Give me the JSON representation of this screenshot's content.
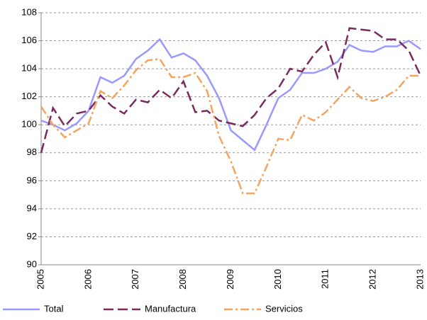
{
  "chart_data": {
    "type": "line",
    "categories": [
      "2005",
      null,
      null,
      null,
      "2006",
      null,
      null,
      null,
      "2007",
      null,
      null,
      null,
      "2008",
      null,
      null,
      null,
      "2009",
      null,
      null,
      null,
      "2010",
      null,
      null,
      null,
      "2011",
      null,
      null,
      null,
      "2012",
      null,
      null,
      null,
      "2013"
    ],
    "series": [
      {
        "name": "Total",
        "color": "#9999ff",
        "dash": "solid",
        "values": [
          100.3,
          100.0,
          99.6,
          100.1,
          101.0,
          103.4,
          103.0,
          103.5,
          104.7,
          105.3,
          106.1,
          104.8,
          105.1,
          104.6,
          103.5,
          101.9,
          99.6,
          98.9,
          98.2,
          100.0,
          101.9,
          102.5,
          103.7,
          103.7,
          104.0,
          104.5,
          105.7,
          105.3,
          105.2,
          105.6,
          105.6,
          106.0,
          105.4
        ]
      },
      {
        "name": "Manufactura",
        "color": "#7b2a5e",
        "dash": "long-dash",
        "values": [
          98.0,
          101.2,
          99.9,
          100.8,
          101.0,
          102.1,
          101.3,
          100.8,
          101.8,
          101.6,
          102.5,
          101.9,
          103.1,
          100.9,
          101.0,
          100.3,
          100.1,
          99.9,
          100.7,
          101.9,
          102.6,
          104.0,
          103.8,
          105.0,
          105.9,
          103.4,
          106.9,
          106.8,
          106.7,
          106.1,
          106.1,
          105.3,
          103.5
        ]
      },
      {
        "name": "Servicios",
        "color": "#f4a460",
        "dash": "dash-dot",
        "values": [
          101.3,
          100.0,
          99.1,
          99.6,
          100.1,
          102.4,
          101.9,
          102.8,
          103.9,
          104.6,
          104.7,
          103.4,
          103.4,
          103.7,
          102.4,
          99.2,
          97.4,
          95.1,
          95.1,
          97.0,
          99.0,
          98.9,
          100.7,
          100.3,
          100.9,
          101.8,
          102.7,
          101.9,
          101.7,
          102.0,
          102.5,
          103.5,
          103.5
        ]
      }
    ],
    "ylim": [
      90,
      108
    ],
    "yticks": [
      90,
      92,
      94,
      96,
      98,
      100,
      102,
      104,
      106,
      108
    ],
    "grid": true,
    "legend": "bottom"
  }
}
